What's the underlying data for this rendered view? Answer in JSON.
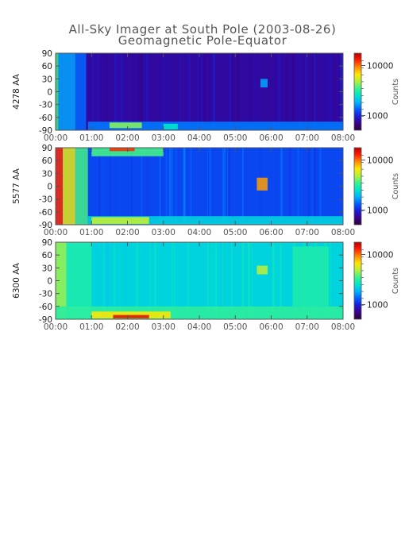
{
  "figure": {
    "title_line1": "All-Sky Imager at South Pole (2003-08-26)",
    "title_line2": "Geomagnetic Pole-Equator"
  },
  "colors": {
    "colormap": [
      "#2a003d",
      "#3a0088",
      "#1b1bd6",
      "#0060ff",
      "#00b4ff",
      "#00e6c8",
      "#3cf08c",
      "#b4f03c",
      "#ffe600",
      "#ff8c00",
      "#ff1e00",
      "#b40000"
    ],
    "axis": "#555555"
  },
  "chart_data": [
    {
      "type": "heatmap",
      "ylabel": "4278 AA",
      "x_tick_labels": [
        "00:00",
        "01:00",
        "02:00",
        "03:00",
        "04:00",
        "05:00",
        "06:00",
        "07:00",
        "08:00"
      ],
      "y_tick_labels": [
        "90",
        "60",
        "30",
        "0",
        "-30",
        "-60",
        "-90"
      ],
      "xlim": [
        "00:00",
        "08:00"
      ],
      "ylim": [
        -90,
        90
      ],
      "colorbar": {
        "label": "Counts",
        "ticks": [
          "10000",
          "1000"
        ],
        "scale": "log"
      },
      "background_level": 0.12,
      "features": [
        {
          "kind": "column",
          "t0": 0.0,
          "t1": 0.08,
          "lat0": -90,
          "lat1": 90,
          "level": 0.55
        },
        {
          "kind": "column",
          "t0": 0.08,
          "t1": 0.55,
          "lat0": -90,
          "lat1": 90,
          "level": 0.35
        },
        {
          "kind": "column",
          "t0": 0.55,
          "t1": 0.85,
          "lat0": -90,
          "lat1": 90,
          "level": 0.28
        },
        {
          "kind": "band",
          "t0": 0.9,
          "t1": 8.0,
          "lat0": -90,
          "lat1": -70,
          "level": 0.3
        },
        {
          "kind": "band",
          "t0": 1.5,
          "t1": 2.4,
          "lat0": -85,
          "lat1": -72,
          "level": 0.6
        },
        {
          "kind": "band",
          "t0": 3.0,
          "t1": 3.4,
          "lat0": -88,
          "lat1": -75,
          "level": 0.45
        },
        {
          "kind": "spot",
          "t0": 5.7,
          "t1": 5.9,
          "lat0": 10,
          "lat1": 30,
          "level": 0.35
        }
      ]
    },
    {
      "type": "heatmap",
      "ylabel": "5577 AA",
      "x_tick_labels": [
        "00:00",
        "01:00",
        "02:00",
        "03:00",
        "04:00",
        "05:00",
        "06:00",
        "07:00",
        "08:00"
      ],
      "y_tick_labels": [
        "90",
        "60",
        "30",
        "0",
        "-30",
        "-60",
        "-90"
      ],
      "xlim": [
        "00:00",
        "08:00"
      ],
      "ylim": [
        -90,
        90
      ],
      "colorbar": {
        "label": "Counts",
        "ticks": [
          "10000",
          "1000"
        ],
        "scale": "log"
      },
      "background_level": 0.24,
      "features": [
        {
          "kind": "column",
          "t0": 0.0,
          "t1": 0.2,
          "lat0": -90,
          "lat1": 90,
          "level": 0.9
        },
        {
          "kind": "column",
          "t0": 0.2,
          "t1": 0.55,
          "lat0": -90,
          "lat1": 90,
          "level": 0.7
        },
        {
          "kind": "column",
          "t0": 0.55,
          "t1": 0.9,
          "lat0": -90,
          "lat1": 90,
          "level": 0.55
        },
        {
          "kind": "band",
          "t0": 0.9,
          "t1": 8.0,
          "lat0": -90,
          "lat1": -70,
          "level": 0.42
        },
        {
          "kind": "band",
          "t0": 1.0,
          "t1": 2.6,
          "lat0": -88,
          "lat1": -72,
          "level": 0.65
        },
        {
          "kind": "band",
          "t0": 1.0,
          "t1": 3.0,
          "lat0": 70,
          "lat1": 90,
          "level": 0.55
        },
        {
          "kind": "spot",
          "t0": 1.5,
          "t1": 2.2,
          "lat0": 82,
          "lat1": 90,
          "level": 0.9
        },
        {
          "kind": "spot",
          "t0": 5.6,
          "t1": 5.9,
          "lat0": -10,
          "lat1": 20,
          "level": 0.8
        }
      ]
    },
    {
      "type": "heatmap",
      "ylabel": "6300 AA",
      "x_tick_labels": [
        "00:00",
        "01:00",
        "02:00",
        "03:00",
        "04:00",
        "05:00",
        "06:00",
        "07:00",
        "08:00"
      ],
      "y_tick_labels": [
        "90",
        "60",
        "30",
        "0",
        "-30",
        "-60",
        "-90"
      ],
      "xlim": [
        "00:00",
        "08:00"
      ],
      "ylim": [
        -90,
        90
      ],
      "colorbar": {
        "label": "Counts",
        "ticks": [
          "10000",
          "1000"
        ],
        "scale": "log"
      },
      "background_level": 0.42,
      "features": [
        {
          "kind": "column",
          "t0": 0.0,
          "t1": 0.3,
          "lat0": -90,
          "lat1": 90,
          "level": 0.62
        },
        {
          "kind": "column",
          "t0": 0.3,
          "t1": 1.0,
          "lat0": -90,
          "lat1": 90,
          "level": 0.5
        },
        {
          "kind": "band",
          "t0": 0.0,
          "t1": 8.0,
          "lat0": -90,
          "lat1": -60,
          "level": 0.52
        },
        {
          "kind": "band",
          "t0": 1.0,
          "t1": 3.2,
          "lat0": -88,
          "lat1": -72,
          "level": 0.72
        },
        {
          "kind": "spot",
          "t0": 1.6,
          "t1": 2.6,
          "lat0": -88,
          "lat1": -80,
          "level": 0.95
        },
        {
          "kind": "spot",
          "t0": 5.6,
          "t1": 5.9,
          "lat0": 15,
          "lat1": 35,
          "level": 0.65
        },
        {
          "kind": "column",
          "t0": 6.6,
          "t1": 7.6,
          "lat0": -60,
          "lat1": 80,
          "level": 0.5
        }
      ]
    }
  ]
}
